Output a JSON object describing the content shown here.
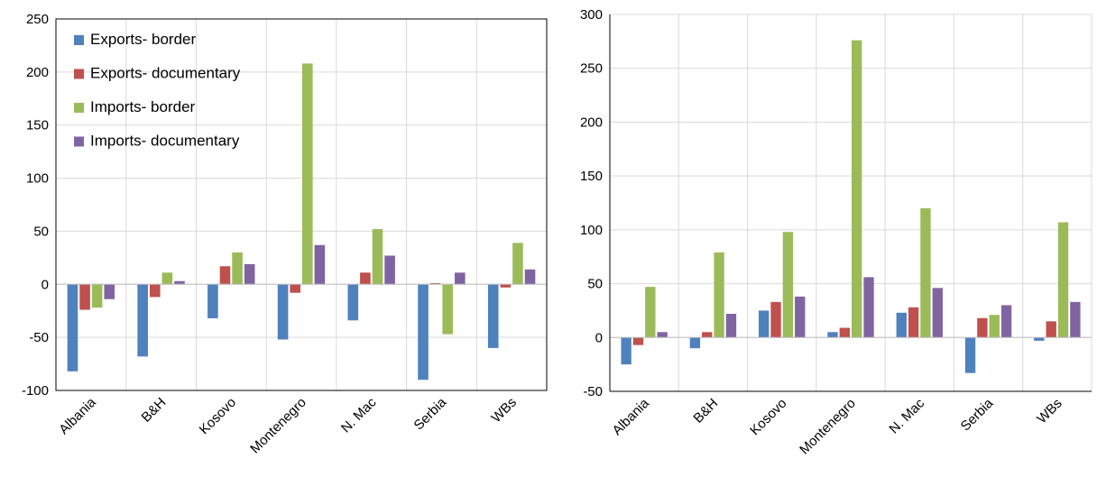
{
  "chart_data": [
    {
      "type": "bar",
      "categories": [
        "Albania",
        "B&H",
        "Kosovo",
        "Montenegro",
        "N. Mac",
        "Serbia",
        "WBs"
      ],
      "ylim": [
        -100,
        250
      ],
      "yticks": [
        -100,
        -50,
        0,
        50,
        100,
        150,
        200,
        250
      ],
      "grid": "horizontal",
      "legend": "top-left",
      "series": [
        {
          "name": "Exports- border",
          "color": "#4F81BD",
          "values": [
            -82,
            -68,
            -32,
            -52,
            -34,
            -90,
            -60
          ]
        },
        {
          "name": "Exports- documentary",
          "color": "#C0504D",
          "values": [
            -24,
            -12,
            17,
            -8,
            11,
            1,
            -3
          ]
        },
        {
          "name": "Imports- border",
          "color": "#9BBB59",
          "values": [
            -22,
            11,
            30,
            208,
            52,
            -47,
            39
          ]
        },
        {
          "name": "Imports- documentary",
          "color": "#8064A2",
          "values": [
            -14,
            3,
            19,
            37,
            27,
            11,
            14
          ]
        }
      ]
    },
    {
      "type": "bar",
      "categories": [
        "Albania",
        "B&H",
        "Kosovo",
        "Montenegro",
        "N. Mac",
        "Serbia",
        "WBs"
      ],
      "ylim": [
        -50,
        300
      ],
      "yticks": [
        -50,
        0,
        50,
        100,
        150,
        200,
        250,
        300
      ],
      "grid": "horizontal",
      "legend": "none",
      "series": [
        {
          "color": "#4F81BD",
          "values": [
            -25,
            -10,
            25,
            5,
            23,
            -33,
            -3
          ]
        },
        {
          "color": "#C0504D",
          "values": [
            -7,
            5,
            33,
            9,
            28,
            18,
            15
          ]
        },
        {
          "color": "#9BBB59",
          "values": [
            47,
            79,
            98,
            276,
            120,
            21,
            107
          ]
        },
        {
          "color": "#8064A2",
          "values": [
            5,
            22,
            38,
            56,
            46,
            30,
            33
          ]
        }
      ]
    }
  ]
}
